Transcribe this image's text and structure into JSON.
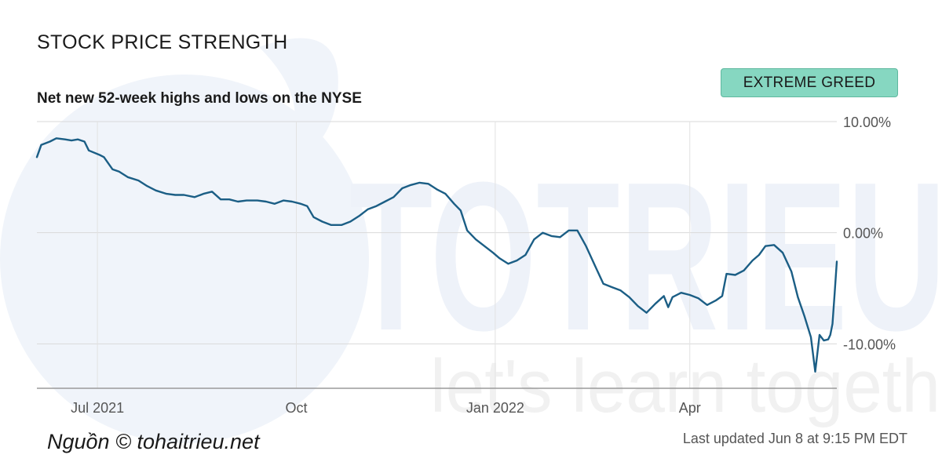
{
  "header": {
    "title": "STOCK PRICE STRENGTH",
    "subtitle": "Net new 52-week highs and lows on the NYSE"
  },
  "badge": {
    "label": "EXTREME GREED",
    "color": "#86d7c1"
  },
  "footer": {
    "source": "Nguồn © tohaitrieu.net",
    "updated": "Last updated Jun 8 at 9:15 PM EDT"
  },
  "watermark": {
    "word": "TOTRIEU",
    "tagline": "let's learn togeth"
  },
  "chart_data": {
    "type": "line",
    "title": "STOCK PRICE STRENGTH",
    "subtitle": "Net new 52-week highs and lows on the NYSE",
    "xlabel": "",
    "ylabel": "",
    "line_color": "#1b5e85",
    "grid": true,
    "y_axis_side": "right",
    "ylim": [
      -14,
      10
    ],
    "yticks": [
      {
        "value": 10,
        "label": "10.00%"
      },
      {
        "value": 0,
        "label": "0.00%"
      },
      {
        "value": -10,
        "label": "-10.00%"
      }
    ],
    "xlim": [
      "2021-06-03",
      "2022-06-08"
    ],
    "xticks": [
      {
        "date": "2021-07-01",
        "label": "Jul 2021"
      },
      {
        "date": "2021-10-01",
        "label": "Oct"
      },
      {
        "date": "2022-01-01",
        "label": "Jan 2022"
      },
      {
        "date": "2022-04-01",
        "label": "Apr"
      }
    ],
    "points": [
      [
        "2021-06-03",
        6.8
      ],
      [
        "2021-06-05",
        7.9
      ],
      [
        "2021-06-09",
        8.2
      ],
      [
        "2021-06-12",
        8.5
      ],
      [
        "2021-06-16",
        8.4
      ],
      [
        "2021-06-19",
        8.3
      ],
      [
        "2021-06-22",
        8.4
      ],
      [
        "2021-06-25",
        8.2
      ],
      [
        "2021-06-27",
        7.4
      ],
      [
        "2021-07-02",
        7.0
      ],
      [
        "2021-07-04",
        6.8
      ],
      [
        "2021-07-08",
        5.7
      ],
      [
        "2021-07-11",
        5.5
      ],
      [
        "2021-07-15",
        5.0
      ],
      [
        "2021-07-20",
        4.7
      ],
      [
        "2021-07-24",
        4.2
      ],
      [
        "2021-07-28",
        3.8
      ],
      [
        "2021-08-02",
        3.5
      ],
      [
        "2021-08-06",
        3.4
      ],
      [
        "2021-08-10",
        3.4
      ],
      [
        "2021-08-15",
        3.2
      ],
      [
        "2021-08-19",
        3.5
      ],
      [
        "2021-08-23",
        3.7
      ],
      [
        "2021-08-27",
        3.0
      ],
      [
        "2021-08-31",
        3.0
      ],
      [
        "2021-09-04",
        2.8
      ],
      [
        "2021-09-08",
        2.9
      ],
      [
        "2021-09-13",
        2.9
      ],
      [
        "2021-09-17",
        2.8
      ],
      [
        "2021-09-21",
        2.6
      ],
      [
        "2021-09-25",
        2.9
      ],
      [
        "2021-09-29",
        2.8
      ],
      [
        "2021-10-03",
        2.6
      ],
      [
        "2021-10-06",
        2.4
      ],
      [
        "2021-10-09",
        1.4
      ],
      [
        "2021-10-13",
        1.0
      ],
      [
        "2021-10-17",
        0.7
      ],
      [
        "2021-10-22",
        0.7
      ],
      [
        "2021-10-26",
        1.0
      ],
      [
        "2021-10-30",
        1.5
      ],
      [
        "2021-11-03",
        2.1
      ],
      [
        "2021-11-07",
        2.4
      ],
      [
        "2021-11-11",
        2.8
      ],
      [
        "2021-11-15",
        3.2
      ],
      [
        "2021-11-19",
        4.0
      ],
      [
        "2021-11-23",
        4.3
      ],
      [
        "2021-11-27",
        4.5
      ],
      [
        "2021-12-01",
        4.4
      ],
      [
        "2021-12-05",
        3.9
      ],
      [
        "2021-12-09",
        3.5
      ],
      [
        "2021-12-13",
        2.6
      ],
      [
        "2021-12-16",
        2.0
      ],
      [
        "2021-12-19",
        0.2
      ],
      [
        "2021-12-23",
        -0.6
      ],
      [
        "2021-12-27",
        -1.2
      ],
      [
        "2021-12-31",
        -1.8
      ],
      [
        "2022-01-03",
        -2.3
      ],
      [
        "2022-01-07",
        -2.8
      ],
      [
        "2022-01-11",
        -2.5
      ],
      [
        "2022-01-15",
        -2.0
      ],
      [
        "2022-01-19",
        -0.6
      ],
      [
        "2022-01-23",
        0.0
      ],
      [
        "2022-01-27",
        -0.3
      ],
      [
        "2022-01-31",
        -0.4
      ],
      [
        "2022-02-04",
        0.2
      ],
      [
        "2022-02-08",
        0.2
      ],
      [
        "2022-02-12",
        -1.2
      ],
      [
        "2022-02-16",
        -2.9
      ],
      [
        "2022-02-20",
        -4.6
      ],
      [
        "2022-02-24",
        -4.9
      ],
      [
        "2022-02-28",
        -5.2
      ],
      [
        "2022-03-04",
        -5.8
      ],
      [
        "2022-03-08",
        -6.6
      ],
      [
        "2022-03-12",
        -7.2
      ],
      [
        "2022-03-16",
        -6.4
      ],
      [
        "2022-03-20",
        -5.7
      ],
      [
        "2022-03-22",
        -6.7
      ],
      [
        "2022-03-24",
        -5.8
      ],
      [
        "2022-03-28",
        -5.4
      ],
      [
        "2022-04-01",
        -5.6
      ],
      [
        "2022-04-05",
        -5.9
      ],
      [
        "2022-04-09",
        -6.5
      ],
      [
        "2022-04-13",
        -6.1
      ],
      [
        "2022-04-16",
        -5.7
      ],
      [
        "2022-04-18",
        -3.7
      ],
      [
        "2022-04-22",
        -3.8
      ],
      [
        "2022-04-26",
        -3.4
      ],
      [
        "2022-04-30",
        -2.5
      ],
      [
        "2022-05-03",
        -2.0
      ],
      [
        "2022-05-06",
        -1.2
      ],
      [
        "2022-05-10",
        -1.1
      ],
      [
        "2022-05-14",
        -1.8
      ],
      [
        "2022-05-18",
        -3.5
      ],
      [
        "2022-05-21",
        -5.8
      ],
      [
        "2022-05-24",
        -7.5
      ],
      [
        "2022-05-27",
        -9.4
      ],
      [
        "2022-05-29",
        -12.5
      ],
      [
        "2022-05-31",
        -9.2
      ],
      [
        "2022-06-02",
        -9.7
      ],
      [
        "2022-06-04",
        -9.6
      ],
      [
        "2022-06-05",
        -9.2
      ],
      [
        "2022-06-06",
        -8.2
      ],
      [
        "2022-06-07",
        -5.5
      ],
      [
        "2022-06-08",
        -2.6
      ]
    ]
  }
}
